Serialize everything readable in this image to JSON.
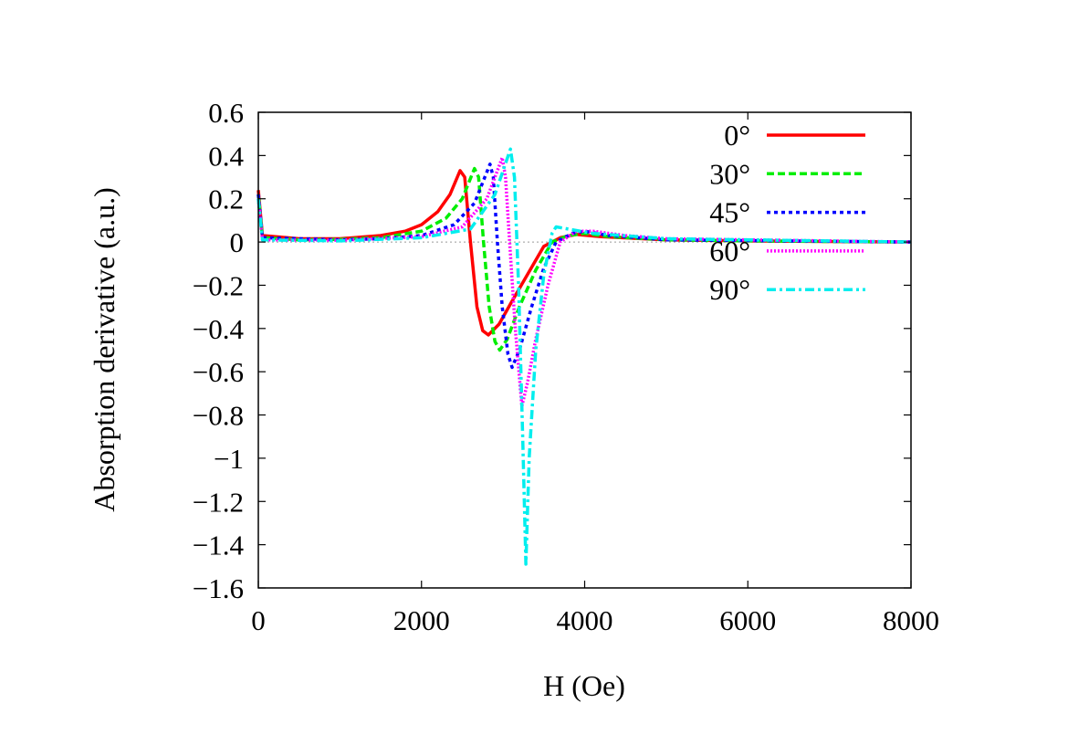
{
  "chart_data": {
    "type": "line",
    "title": "",
    "xlabel": "H (Oe)",
    "ylabel": "Absorption derivative (a.u.)",
    "xlim": [
      0,
      8000
    ],
    "ylim": [
      -1.6,
      0.6
    ],
    "xticks": [
      0,
      2000,
      4000,
      6000,
      8000
    ],
    "xtick_labels": [
      "0",
      "2000",
      "4000",
      "6000",
      "8000"
    ],
    "yticks": [
      0.6,
      0.4,
      0.2,
      0,
      -0.2,
      -0.4,
      -0.6,
      -0.8,
      -1,
      -1.2,
      -1.4,
      -1.6
    ],
    "ytick_labels": [
      "0.6",
      "0.4",
      "0.2",
      "0",
      "−0.2",
      "−0.4",
      "−0.6",
      "−0.8",
      "−1",
      "−1.2",
      "−1.4",
      "−1.6"
    ],
    "grid": false,
    "zero_line": true,
    "legend_placement": "top-right",
    "series": [
      {
        "name": "0°",
        "color": "#ff0000",
        "style": "solid",
        "points": [
          [
            0,
            0.24
          ],
          [
            50,
            0.03
          ],
          [
            500,
            0.015
          ],
          [
            1000,
            0.015
          ],
          [
            1500,
            0.03
          ],
          [
            1800,
            0.05
          ],
          [
            2000,
            0.08
          ],
          [
            2200,
            0.14
          ],
          [
            2350,
            0.22
          ],
          [
            2473,
            0.33
          ],
          [
            2530,
            0.3
          ],
          [
            2600,
            0.0
          ],
          [
            2680,
            -0.3
          ],
          [
            2750,
            -0.41
          ],
          [
            2820,
            -0.43
          ],
          [
            2950,
            -0.38
          ],
          [
            3100,
            -0.28
          ],
          [
            3300,
            -0.15
          ],
          [
            3500,
            -0.02
          ],
          [
            3700,
            0.02
          ],
          [
            3900,
            0.035
          ],
          [
            4200,
            0.025
          ],
          [
            5000,
            0.01
          ],
          [
            6000,
            0.005
          ],
          [
            8000,
            0.0
          ]
        ]
      },
      {
        "name": "30°",
        "color": "#00ee00",
        "style": "dashed",
        "points": [
          [
            0,
            0.22
          ],
          [
            50,
            0.02
          ],
          [
            500,
            0.01
          ],
          [
            1000,
            0.012
          ],
          [
            1500,
            0.02
          ],
          [
            2000,
            0.05
          ],
          [
            2300,
            0.11
          ],
          [
            2500,
            0.2
          ],
          [
            2650,
            0.34
          ],
          [
            2700,
            0.3
          ],
          [
            2760,
            0.0
          ],
          [
            2830,
            -0.3
          ],
          [
            2900,
            -0.46
          ],
          [
            2960,
            -0.5
          ],
          [
            3050,
            -0.45
          ],
          [
            3200,
            -0.3
          ],
          [
            3400,
            -0.13
          ],
          [
            3600,
            0.0
          ],
          [
            3800,
            0.03
          ],
          [
            4000,
            0.04
          ],
          [
            4300,
            0.025
          ],
          [
            5000,
            0.01
          ],
          [
            6000,
            0.005
          ],
          [
            8000,
            0.0
          ]
        ]
      },
      {
        "name": "45°",
        "color": "#0000ff",
        "style": "dotted",
        "points": [
          [
            0,
            0.22
          ],
          [
            50,
            0.02
          ],
          [
            1000,
            0.01
          ],
          [
            1500,
            0.015
          ],
          [
            2000,
            0.03
          ],
          [
            2400,
            0.08
          ],
          [
            2650,
            0.18
          ],
          [
            2840,
            0.36
          ],
          [
            2880,
            0.3
          ],
          [
            2930,
            0.0
          ],
          [
            2990,
            -0.3
          ],
          [
            3060,
            -0.52
          ],
          [
            3110,
            -0.58
          ],
          [
            3200,
            -0.5
          ],
          [
            3350,
            -0.3
          ],
          [
            3500,
            -0.12
          ],
          [
            3650,
            0.0
          ],
          [
            3850,
            0.04
          ],
          [
            4000,
            0.05
          ],
          [
            4300,
            0.03
          ],
          [
            5000,
            0.01
          ],
          [
            8000,
            0.0
          ]
        ]
      },
      {
        "name": "60°",
        "color": "#ff00ff",
        "style": "fine-dotted",
        "points": [
          [
            0,
            0.2
          ],
          [
            50,
            0.01
          ],
          [
            1000,
            0.008
          ],
          [
            2000,
            0.025
          ],
          [
            2500,
            0.07
          ],
          [
            2800,
            0.2
          ],
          [
            2990,
            0.39
          ],
          [
            3030,
            0.3
          ],
          [
            3080,
            0.0
          ],
          [
            3150,
            -0.4
          ],
          [
            3230,
            -0.76
          ],
          [
            3300,
            -0.65
          ],
          [
            3400,
            -0.45
          ],
          [
            3550,
            -0.2
          ],
          [
            3700,
            0.0
          ],
          [
            3900,
            0.05
          ],
          [
            4100,
            0.05
          ],
          [
            4500,
            0.03
          ],
          [
            5000,
            0.015
          ],
          [
            8000,
            0.0
          ]
        ]
      },
      {
        "name": "90°",
        "color": "#00eeee",
        "style": "dash-dot",
        "points": [
          [
            0,
            0.2
          ],
          [
            50,
            0.01
          ],
          [
            1000,
            0.005
          ],
          [
            2000,
            0.02
          ],
          [
            2600,
            0.06
          ],
          [
            2900,
            0.22
          ],
          [
            3090,
            0.43
          ],
          [
            3140,
            0.3
          ],
          [
            3190,
            -0.2
          ],
          [
            3240,
            -0.9
          ],
          [
            3280,
            -1.49
          ],
          [
            3320,
            -1.0
          ],
          [
            3400,
            -0.5
          ],
          [
            3500,
            -0.15
          ],
          [
            3600,
            0.04
          ],
          [
            3650,
            0.07
          ],
          [
            3800,
            0.06
          ],
          [
            4100,
            0.04
          ],
          [
            5000,
            0.015
          ],
          [
            8000,
            0.0
          ]
        ]
      }
    ]
  }
}
